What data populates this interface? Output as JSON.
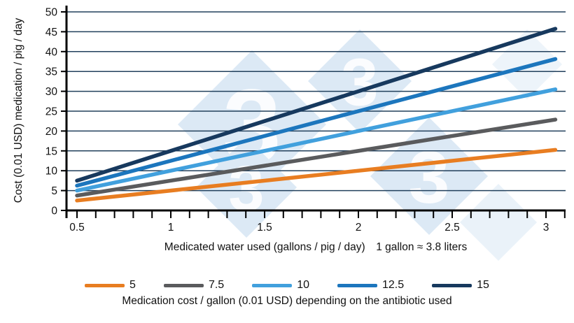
{
  "chart_data": {
    "type": "line",
    "title": "",
    "xlabel": "Medicated water used (gallons / pig / day)",
    "xlabel_note": "1 gallon ≈ 3.8 liters",
    "ylabel": "Cost (0.01 USD) medication / pig / day",
    "xlim": [
      0.45,
      3.15
    ],
    "ylim": [
      0,
      50
    ],
    "x_major_ticks": [
      0.5,
      1,
      1.5,
      2,
      2.5,
      3
    ],
    "x_major_tick_labels": [
      "0.5",
      "1",
      "1.5",
      "2",
      "2.5",
      "3"
    ],
    "x_minor_tick_step": 0.1,
    "x_minor_tick_range": [
      0.5,
      3.1
    ],
    "y_ticks": [
      0,
      5,
      10,
      15,
      20,
      25,
      30,
      35,
      40,
      45,
      50
    ],
    "grid": "horizontal",
    "series": [
      {
        "name": "5",
        "cost_per_gallon": 5,
        "color": "#e87d21",
        "x": [
          0.5,
          3.05
        ],
        "values": [
          2.5,
          15.25
        ]
      },
      {
        "name": "7.5",
        "cost_per_gallon": 7.5,
        "color": "#5a5b5d",
        "x": [
          0.5,
          3.05
        ],
        "values": [
          3.75,
          22.88
        ]
      },
      {
        "name": "10",
        "cost_per_gallon": 10,
        "color": "#41a0dd",
        "x": [
          0.5,
          3.05
        ],
        "values": [
          5,
          30.5
        ]
      },
      {
        "name": "12.5",
        "cost_per_gallon": 12.5,
        "color": "#1c76bd",
        "x": [
          0.5,
          3.05
        ],
        "values": [
          6.25,
          38.13
        ]
      },
      {
        "name": "15",
        "cost_per_gallon": 15,
        "color": "#17395e",
        "x": [
          0.5,
          3.05
        ],
        "values": [
          7.5,
          45.75
        ]
      }
    ],
    "legend_position": "bottom",
    "legend_caption": "Medication cost / gallon (0.01 USD) depending on the antibiotic used"
  },
  "watermark": {
    "digit": "3",
    "diamond_color": "#dce9f5",
    "digit_color": "#ffffff"
  },
  "colors": {
    "grid": "#22405c",
    "axis": "#000000",
    "tick_text": "#111111"
  }
}
